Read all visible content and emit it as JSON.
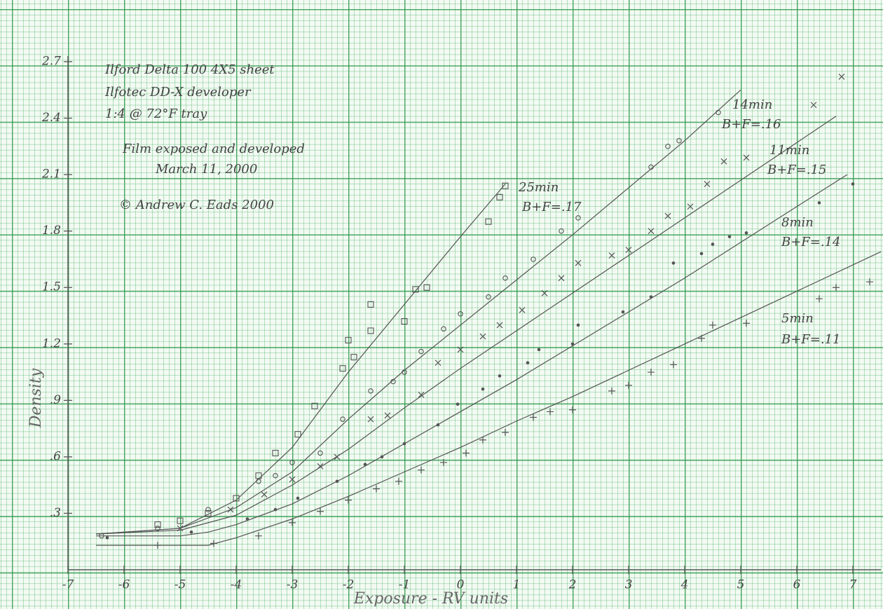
{
  "chart_data": {
    "type": "line",
    "annotations": [
      "Ilford Delta 100  4X5 sheet",
      "Ilfotec DD-X developer",
      "1:4 @ 72°F tray",
      "Film exposed and developed",
      "March 11, 2000",
      "© Andrew C. Eads 2000"
    ],
    "xlabel": "Exposure - RV units",
    "ylabel": "Density",
    "xlim": [
      -7,
      7.5
    ],
    "ylim": [
      0,
      2.7
    ],
    "xticks": [
      -7,
      -6,
      -5,
      -4,
      -3,
      -2,
      -1,
      0,
      1,
      2,
      3,
      4,
      5,
      6,
      7
    ],
    "yticks": [
      {
        "value": 0.3,
        "label": ".3"
      },
      {
        "value": 0.6,
        "label": ".6"
      },
      {
        "value": 0.9,
        "label": ".9"
      },
      1.2,
      1.5,
      1.8,
      2.1,
      2.4,
      2.7
    ],
    "color": "#555555",
    "series": [
      {
        "name": "25min",
        "note": "B+F=.17",
        "marker": "square",
        "curve": {
          "x": [
            -6.5,
            -5,
            -4,
            -3,
            -2,
            -1,
            0,
            0.8
          ],
          "values": [
            0.19,
            0.22,
            0.37,
            0.65,
            1.05,
            1.41,
            1.77,
            2.05
          ]
        },
        "points": {
          "x": [
            -5.4,
            -5,
            -4.5,
            -4,
            -3.6,
            -3.3,
            -2.9,
            -2.6,
            -2.1,
            -2,
            -1.9,
            -1.6,
            -1.6,
            -1,
            -0.8,
            -0.6,
            0.5,
            0.7,
            0.8
          ],
          "values": [
            0.24,
            0.26,
            0.3,
            0.38,
            0.5,
            0.62,
            0.72,
            0.87,
            1.07,
            1.22,
            1.13,
            1.27,
            1.41,
            1.32,
            1.49,
            1.5,
            1.85,
            1.98,
            2.04
          ]
        }
      },
      {
        "name": "14min",
        "note": "B+F=.16",
        "marker": "circle",
        "curve": {
          "x": [
            -6.5,
            -5,
            -4,
            -3,
            -2,
            -1,
            0,
            1,
            2,
            3,
            4,
            5
          ],
          "values": [
            0.19,
            0.22,
            0.33,
            0.52,
            0.8,
            1.06,
            1.3,
            1.54,
            1.78,
            2.03,
            2.28,
            2.55
          ]
        },
        "points": {
          "x": [
            -6.4,
            -5.4,
            -4.5,
            -3.6,
            -3.3,
            -3,
            -2.5,
            -2.1,
            -1.6,
            -1.2,
            -1,
            -0.7,
            -0.3,
            0,
            0.5,
            0.8,
            1.3,
            1.8,
            2.1,
            3.4,
            3.7,
            3.9,
            4.6
          ],
          "values": [
            0.18,
            0.22,
            0.32,
            0.47,
            0.5,
            0.57,
            0.62,
            0.8,
            0.95,
            1.0,
            1.05,
            1.16,
            1.28,
            1.36,
            1.45,
            1.55,
            1.65,
            1.8,
            1.87,
            2.14,
            2.25,
            2.28,
            2.43
          ]
        }
      },
      {
        "name": "11min",
        "note": "B+F=.15",
        "marker": "cross",
        "curve": {
          "x": [
            -6.5,
            -5,
            -4,
            -3,
            -2,
            -1,
            0,
            1,
            2,
            3,
            4,
            5,
            6,
            6.7
          ],
          "values": [
            0.19,
            0.21,
            0.29,
            0.45,
            0.64,
            0.86,
            1.07,
            1.27,
            1.47,
            1.67,
            1.87,
            2.07,
            2.27,
            2.41
          ]
        },
        "points": {
          "x": [
            -5,
            -4.1,
            -3.5,
            -3,
            -2.5,
            -2.2,
            -1.6,
            -1.3,
            -0.7,
            -0.4,
            0,
            0.4,
            0.7,
            1.1,
            1.5,
            1.8,
            2.1,
            2.7,
            3,
            3.4,
            3.7,
            4.1,
            4.4,
            4.7,
            5.1,
            6.3,
            6.8
          ],
          "values": [
            0.22,
            0.32,
            0.4,
            0.48,
            0.55,
            0.6,
            0.8,
            0.82,
            0.93,
            1.1,
            1.17,
            1.24,
            1.3,
            1.38,
            1.47,
            1.55,
            1.63,
            1.67,
            1.7,
            1.8,
            1.88,
            1.93,
            2.05,
            2.17,
            2.19,
            2.47,
            2.62
          ]
        }
      },
      {
        "name": "8min",
        "note": "B+F=.14",
        "marker": "dot",
        "curve": {
          "x": [
            -6.5,
            -5,
            -4.5,
            -4,
            -3,
            -2,
            -1,
            0,
            1,
            2,
            3,
            4,
            5,
            6,
            6.9
          ],
          "values": [
            0.18,
            0.18,
            0.2,
            0.24,
            0.35,
            0.5,
            0.67,
            0.84,
            1.01,
            1.19,
            1.37,
            1.55,
            1.74,
            1.93,
            2.1
          ]
        },
        "points": {
          "x": [
            -6.3,
            -4.8,
            -3.8,
            -3.3,
            -2.9,
            -2.2,
            -1.7,
            -1.4,
            -1,
            -0.4,
            -0.05,
            0.4,
            0.7,
            1.2,
            1.4,
            2,
            2.1,
            2.9,
            3.4,
            3.8,
            4.3,
            4.5,
            4.8,
            5.1,
            6.4,
            7
          ],
          "values": [
            0.17,
            0.2,
            0.27,
            0.32,
            0.38,
            0.47,
            0.56,
            0.6,
            0.67,
            0.77,
            0.88,
            0.96,
            1.03,
            1.1,
            1.17,
            1.2,
            1.3,
            1.37,
            1.45,
            1.63,
            1.68,
            1.73,
            1.77,
            1.79,
            1.95,
            2.05
          ]
        }
      },
      {
        "name": "5min",
        "note": "B+F=.11",
        "marker": "plus",
        "curve": {
          "x": [
            -6.5,
            -4.5,
            -4,
            -3,
            -2,
            -1,
            0,
            1,
            2,
            3,
            4,
            5,
            6,
            7.5
          ],
          "values": [
            0.13,
            0.13,
            0.17,
            0.27,
            0.39,
            0.52,
            0.65,
            0.79,
            0.92,
            1.06,
            1.2,
            1.34,
            1.48,
            1.69
          ]
        },
        "points": {
          "x": [
            -5.4,
            -4.4,
            -3.6,
            -3,
            -2.5,
            -2,
            -1.5,
            -1.1,
            -0.7,
            -0.3,
            0.1,
            0.4,
            0.8,
            1.3,
            1.6,
            2,
            2.7,
            3,
            3.4,
            3.8,
            4.3,
            4.5,
            5.1,
            6.4,
            6.7,
            7.3
          ],
          "values": [
            0.13,
            0.14,
            0.18,
            0.25,
            0.31,
            0.37,
            0.43,
            0.47,
            0.53,
            0.57,
            0.62,
            0.69,
            0.73,
            0.81,
            0.84,
            0.85,
            0.95,
            0.98,
            1.05,
            1.09,
            1.23,
            1.3,
            1.31,
            1.44,
            1.5,
            1.53
          ]
        }
      }
    ]
  }
}
